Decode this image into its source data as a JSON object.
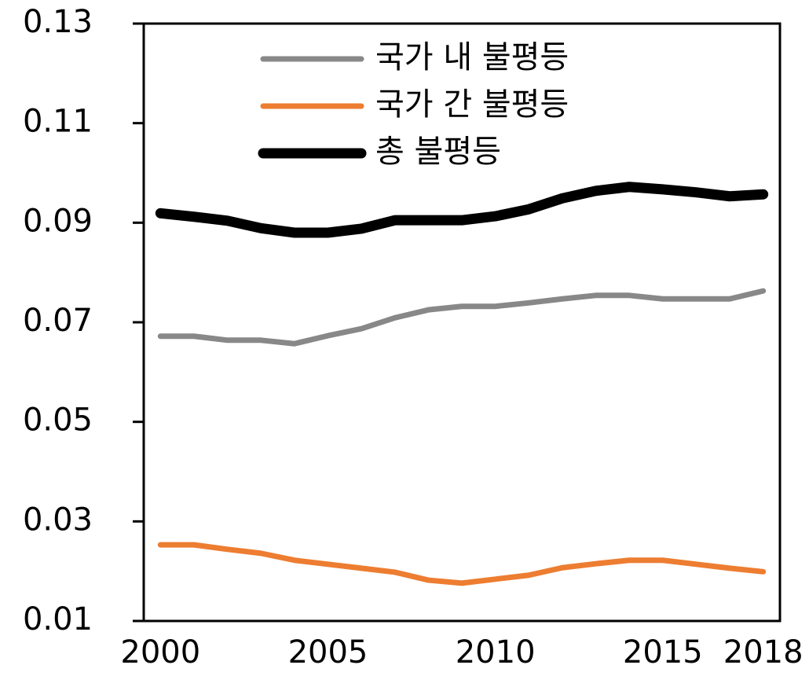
{
  "chart_data": {
    "type": "line",
    "x": [
      2000,
      2001,
      2002,
      2003,
      2004,
      2005,
      2006,
      2007,
      2008,
      2009,
      2010,
      2011,
      2012,
      2013,
      2014,
      2015,
      2016,
      2017,
      2018
    ],
    "series": [
      {
        "name": "국가 내 불평등",
        "color": "#888888",
        "width": 7,
        "values": [
          0.0672,
          0.0672,
          0.0664,
          0.0664,
          0.0657,
          0.0673,
          0.0687,
          0.0709,
          0.0725,
          0.0732,
          0.0732,
          0.0739,
          0.0747,
          0.0754,
          0.0754,
          0.0747,
          0.0747,
          0.0747,
          0.0763
        ]
      },
      {
        "name": "국가 간 불평등",
        "color": "#ed7d31",
        "width": 7,
        "values": [
          0.0253,
          0.0253,
          0.0244,
          0.0236,
          0.0222,
          0.0214,
          0.0206,
          0.0198,
          0.0182,
          0.0176,
          0.0184,
          0.0192,
          0.0207,
          0.0215,
          0.0222,
          0.0222,
          0.0214,
          0.0206,
          0.0199
        ]
      },
      {
        "name": "총 불평등",
        "color": "#000000",
        "width": 13,
        "values": [
          0.0919,
          0.0912,
          0.0904,
          0.0889,
          0.088,
          0.088,
          0.0888,
          0.0905,
          0.0905,
          0.0905,
          0.0913,
          0.0927,
          0.0949,
          0.0964,
          0.0972,
          0.0967,
          0.0961,
          0.0953,
          0.0957
        ]
      }
    ],
    "xlim": [
      1999.5,
      2018.5
    ],
    "xticks": [
      2000,
      2005,
      2010,
      2015,
      2018
    ],
    "ylim": [
      0.01,
      0.13
    ],
    "yticks": [
      0.01,
      0.03,
      0.05,
      0.07,
      0.09,
      0.11,
      0.13
    ],
    "legend": "top"
  }
}
